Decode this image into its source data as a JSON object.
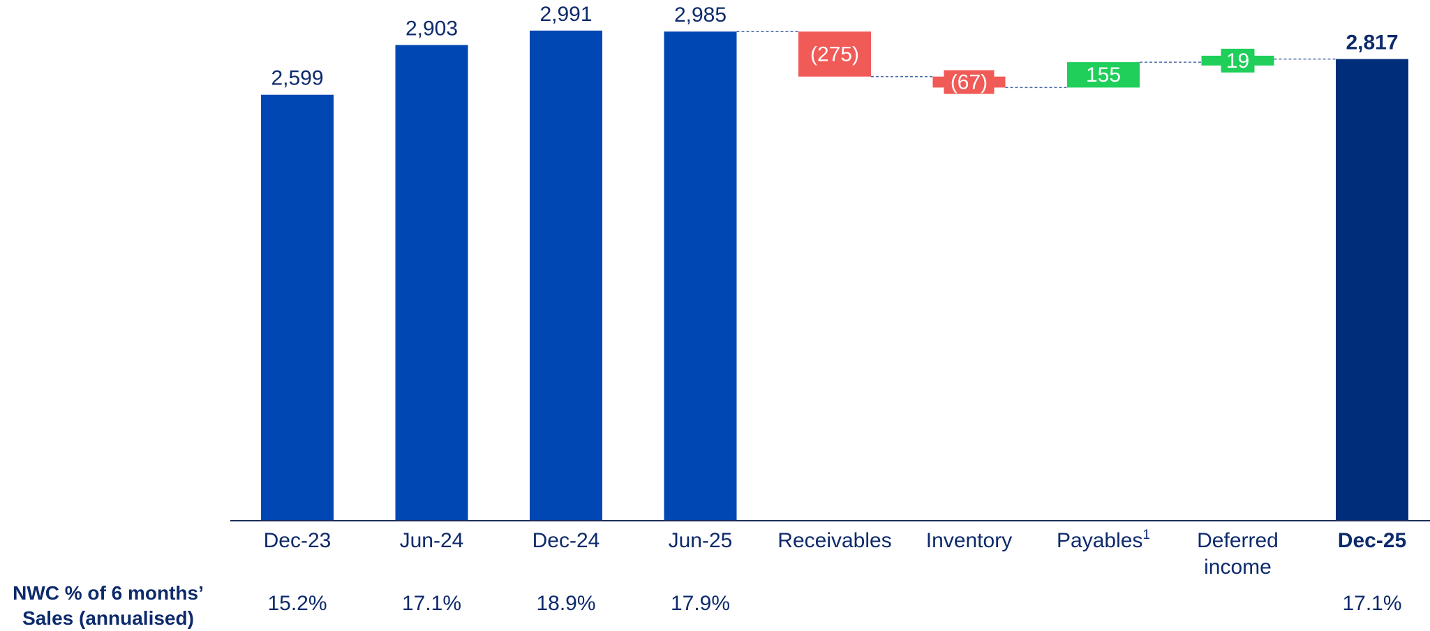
{
  "chart_data": {
    "type": "bar",
    "subtype": "waterfall",
    "categories": [
      "Dec-23",
      "Jun-24",
      "Dec-24",
      "Jun-25",
      "Receivables",
      "Inventory",
      "Payables",
      "Deferred income",
      "Dec-25"
    ],
    "category_superscripts": [
      "",
      "",
      "",
      "",
      "",
      "",
      "1",
      "",
      ""
    ],
    "bar_kinds": [
      "total",
      "total",
      "total",
      "total",
      "delta",
      "delta",
      "delta",
      "delta",
      "total"
    ],
    "values": [
      2599,
      2903,
      2991,
      2985,
      -275,
      -67,
      155,
      19,
      2817
    ],
    "value_labels": [
      "2,599",
      "2,903",
      "2,991",
      "2,985",
      "(275)",
      "(67)",
      "155",
      "19",
      "2,817"
    ],
    "nwc_percent_labels": [
      "15.2%",
      "17.1%",
      "18.9%",
      "17.9%",
      "",
      "",
      "",
      "",
      "17.1%"
    ],
    "bold_categories": [
      "Dec-25"
    ],
    "row_label_lines": [
      "NWC % of 6 months’",
      "Sales (annualised)"
    ],
    "ylim": [
      0,
      3050
    ],
    "grid": false,
    "legend": "none",
    "connectors": "dashed",
    "colors": {
      "total": "#0047b3",
      "final_total": "#002d7a",
      "decrease": "#f05a57",
      "increase": "#1fcf5a",
      "text": "#0d2a6b",
      "axis": "#1d2d5c",
      "connector": "#4a6aa8"
    }
  }
}
